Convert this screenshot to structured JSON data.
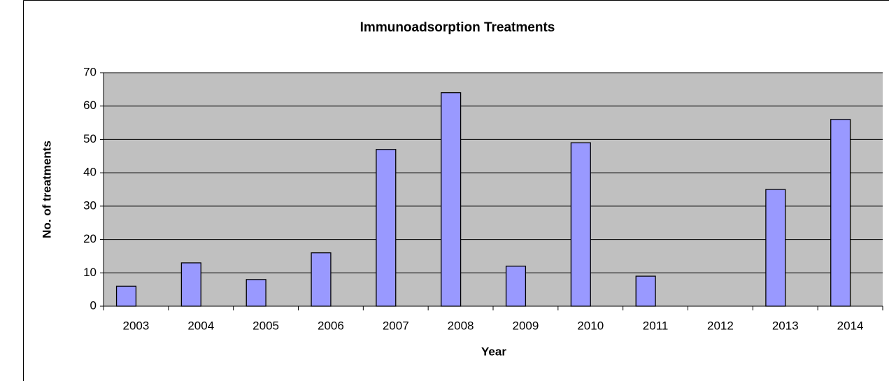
{
  "chart_data": {
    "type": "bar",
    "title": "Immunoadsorption Treatments",
    "x_label": "Year",
    "y_label": "No. of treatments",
    "categories": [
      "2003",
      "2004",
      "2005",
      "2006",
      "2007",
      "2008",
      "2009",
      "2010",
      "2011",
      "2012",
      "2013",
      "2014"
    ],
    "values": [
      6,
      13,
      8,
      16,
      47,
      64,
      12,
      49,
      9,
      0,
      35,
      56
    ],
    "color": "#9999ff",
    "ylim": [
      0,
      70
    ],
    "yticks": [
      0,
      10,
      20,
      30,
      40,
      50,
      60,
      70
    ],
    "grid": true
  }
}
